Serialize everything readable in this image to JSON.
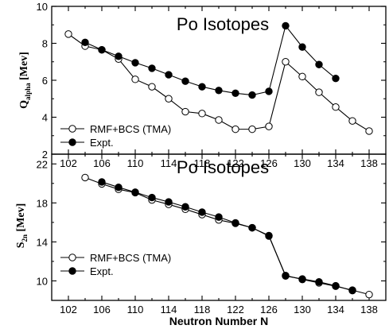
{
  "chart_data": [
    {
      "type": "line",
      "title": "Po Isotopes",
      "ylabel": "Q",
      "ylabel_sub": "alpha",
      "ylabel_unit": "[Mev]",
      "ylim": [
        2,
        10
      ],
      "yticks": [
        2,
        4,
        6,
        8,
        10
      ],
      "xlim": [
        100,
        140
      ],
      "xticks": [
        102,
        106,
        110,
        114,
        118,
        122,
        126,
        130,
        134,
        138
      ],
      "grid": false,
      "legend_position": "bottom-left",
      "series": [
        {
          "name": "RMF+BCS (TMA)",
          "marker": "open-circle",
          "x": [
            102,
            104,
            106,
            108,
            110,
            112,
            114,
            116,
            118,
            120,
            122,
            124,
            126,
            128,
            130,
            132,
            134,
            136,
            138
          ],
          "y": [
            8.5,
            7.85,
            7.65,
            7.15,
            6.05,
            5.65,
            5.0,
            4.3,
            4.2,
            3.85,
            3.35,
            3.35,
            3.5,
            7.0,
            6.2,
            5.35,
            4.55,
            3.8,
            3.25
          ]
        },
        {
          "name": "Expt.",
          "marker": "filled-circle",
          "x": [
            104,
            106,
            108,
            110,
            112,
            114,
            116,
            118,
            120,
            122,
            124,
            126,
            128,
            130,
            132,
            134
          ],
          "y": [
            8.05,
            7.65,
            7.3,
            6.95,
            6.65,
            6.3,
            5.95,
            5.65,
            5.45,
            5.3,
            5.2,
            5.4,
            8.95,
            7.8,
            6.85,
            6.1
          ]
        }
      ]
    },
    {
      "type": "line",
      "title": "Po Isotopes",
      "xlabel": "Neutron Number N",
      "ylabel": "S",
      "ylabel_sub": "2n",
      "ylabel_unit": "[Mev]",
      "ylim": [
        8,
        23
      ],
      "yticks": [
        10,
        14,
        18,
        22
      ],
      "xlim": [
        100,
        140
      ],
      "xticks": [
        102,
        106,
        110,
        114,
        118,
        122,
        126,
        130,
        134,
        138
      ],
      "grid": false,
      "legend_position": "bottom-left",
      "series": [
        {
          "name": "RMF+BCS (TMA)",
          "marker": "open-circle",
          "x": [
            104,
            106,
            108,
            110,
            112,
            114,
            116,
            118,
            120,
            122,
            124,
            126,
            128,
            130,
            132,
            134,
            136,
            138
          ],
          "y": [
            20.6,
            19.95,
            19.4,
            19.05,
            18.3,
            17.85,
            17.35,
            16.8,
            16.25,
            15.9,
            15.45,
            14.6,
            10.55,
            10.15,
            9.8,
            9.45,
            9.05,
            8.6
          ]
        },
        {
          "name": "Expt.",
          "marker": "filled-circle",
          "x": [
            106,
            108,
            110,
            112,
            114,
            116,
            118,
            120,
            122,
            124,
            126,
            128,
            130,
            132,
            134,
            136
          ],
          "y": [
            20.15,
            19.6,
            19.1,
            18.55,
            18.1,
            17.6,
            17.05,
            16.55,
            15.95,
            15.45,
            14.65,
            10.5,
            10.2,
            9.9,
            9.5,
            9.0
          ]
        }
      ]
    }
  ]
}
